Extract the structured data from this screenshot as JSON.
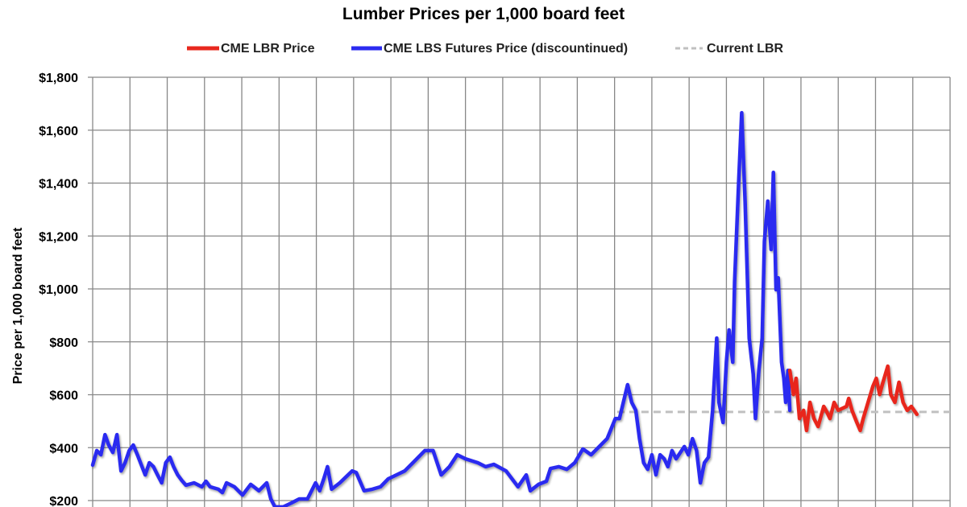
{
  "chart_data": {
    "type": "line",
    "title": "Lumber Prices per 1,000 board feet",
    "xlabel": "",
    "ylabel": "Price per 1,000 board feet",
    "ylim": [
      200,
      1800
    ],
    "xlim": [
      0,
      230
    ],
    "x_grid_step": 10,
    "y_ticks": [
      200,
      400,
      600,
      800,
      1000,
      1200,
      1400,
      1600,
      1800
    ],
    "y_tick_labels": [
      "$200",
      "$400",
      "$600",
      "$800",
      "$1,000",
      "$1,200",
      "$1,400",
      "$1,600",
      "$1,800"
    ],
    "grid": true,
    "legend_position": "top-center",
    "series": [
      {
        "name": "CME LBR Price",
        "color": "#e8281e",
        "style": "solid",
        "x": [
          187.0,
          188.0,
          188.7,
          189.6,
          190.7,
          191.5,
          192.4,
          193.5,
          194.6,
          196.1,
          196.7,
          197.8,
          198.9,
          200.0,
          202.2,
          202.8,
          203.7,
          205.0,
          205.9,
          206.7,
          208.0,
          209.3,
          210.2,
          211.1,
          212.0,
          213.3,
          214.1,
          215.2,
          216.3,
          217.4,
          218.5,
          219.6,
          221.1
        ],
        "values": [
          692,
          601,
          662,
          510,
          541,
          465,
          571,
          510,
          480,
          556,
          541,
          510,
          571,
          541,
          556,
          586,
          541,
          495,
          465,
          510,
          571,
          632,
          662,
          601,
          647,
          708,
          601,
          571,
          647,
          571,
          541,
          556,
          526
        ]
      },
      {
        "name": "CME LBS Futures Price (discountinued)",
        "color": "#2b2bf0",
        "style": "solid",
        "x": [
          0,
          1.1,
          2.2,
          3.3,
          4.3,
          5.4,
          6.5,
          7.6,
          8.7,
          9.8,
          10.9,
          12.0,
          13.0,
          14.1,
          15.2,
          16.3,
          17.4,
          18.5,
          19.6,
          20.7,
          21.7,
          22.8,
          23.9,
          25.0,
          27.2,
          29.3,
          30.4,
          31.5,
          33.7,
          34.8,
          35.9,
          38.0,
          40.2,
          42.4,
          44.6,
          46.7,
          47.8,
          48.9,
          51.1,
          53.3,
          55.4,
          57.6,
          59.8,
          60.9,
          62.0,
          63.0,
          64.1,
          66.3,
          68.5,
          69.6,
          70.7,
          72.8,
          75.0,
          77.2,
          79.3,
          81.5,
          83.7,
          85.9,
          89.1,
          91.3,
          93.5,
          95.7,
          97.8,
          100.0,
          103.3,
          105.4,
          107.6,
          110.9,
          114.1,
          116.3,
          117.4,
          119.6,
          121.7,
          122.8,
          125.0,
          127.2,
          129.3,
          131.5,
          133.7,
          135.9,
          138.0,
          140.2,
          141.3,
          143.5,
          144.6,
          145.7,
          146.7,
          147.8,
          148.9,
          150.0,
          151.1,
          152.2,
          153.3,
          154.3,
          155.4,
          156.5,
          158.7,
          159.8,
          160.9,
          162.0,
          163.0,
          164.1,
          165.2,
          166.3,
          167.4,
          168.0,
          169.1,
          170.0,
          170.7,
          171.7,
          172.2,
          173.3,
          174.1,
          175.0,
          176.1,
          177.2,
          177.8,
          178.7,
          179.6,
          180.2,
          181.1,
          182.0,
          182.6,
          183.3,
          183.9,
          184.8,
          185.4,
          185.9,
          186.5,
          187.0
        ],
        "values": [
          334,
          389,
          373,
          449,
          410,
          382,
          449,
          312,
          343,
          389,
          410,
          373,
          337,
          297,
          343,
          328,
          297,
          267,
          343,
          364,
          328,
          297,
          276,
          258,
          267,
          252,
          273,
          252,
          243,
          230,
          267,
          252,
          221,
          261,
          237,
          267,
          206,
          176,
          176,
          191,
          206,
          206,
          267,
          237,
          282,
          328,
          243,
          267,
          297,
          312,
          306,
          237,
          243,
          252,
          282,
          297,
          312,
          343,
          389,
          389,
          297,
          328,
          373,
          358,
          343,
          328,
          337,
          312,
          252,
          297,
          237,
          261,
          273,
          321,
          328,
          318,
          343,
          395,
          373,
          404,
          434,
          510,
          510,
          638,
          571,
          541,
          434,
          343,
          318,
          373,
          297,
          373,
          358,
          328,
          389,
          358,
          404,
          373,
          434,
          389,
          267,
          343,
          364,
          541,
          814,
          571,
          495,
          723,
          845,
          723,
          1027,
          1408,
          1666,
          1332,
          814,
          678,
          510,
          692,
          814,
          1180,
          1332,
          1149,
          1440,
          997,
          1042,
          723,
          662,
          571,
          692,
          541
        ]
      },
      {
        "name": "Current LBR",
        "color": "#c0c0c0",
        "style": "dashed",
        "x": [
          140.7,
          230
        ],
        "values": [
          535,
          535
        ]
      }
    ]
  }
}
